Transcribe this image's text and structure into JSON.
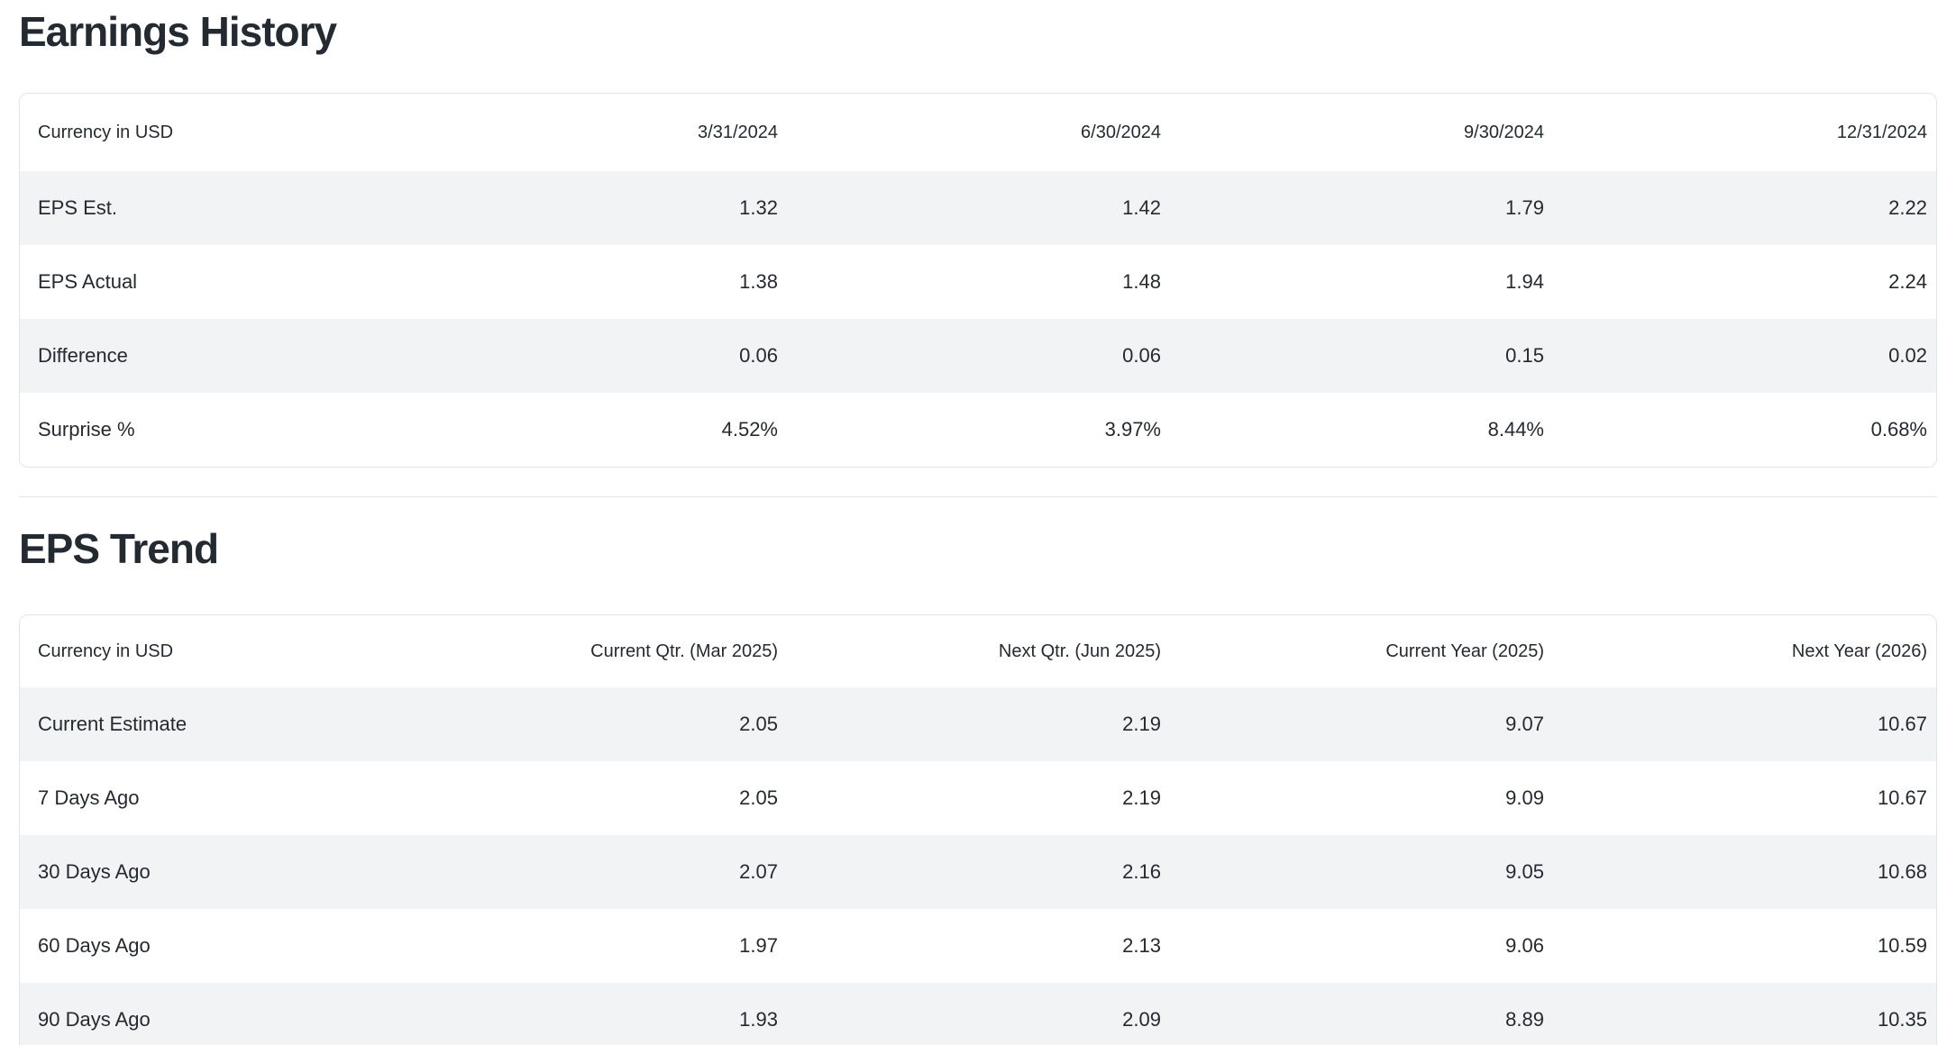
{
  "page": {
    "text_color": "#232a31",
    "stripe_color": "#f2f3f5",
    "border_color": "#e0e3e8",
    "background_color": "#ffffff"
  },
  "sections": [
    {
      "title": "Earnings History",
      "table": {
        "header": [
          "Currency in USD",
          "3/31/2024",
          "6/30/2024",
          "9/30/2024",
          "12/31/2024"
        ],
        "rows": [
          {
            "label": "EPS Est.",
            "values": [
              "1.32",
              "1.42",
              "1.79",
              "2.22"
            ]
          },
          {
            "label": "EPS Actual",
            "values": [
              "1.38",
              "1.48",
              "1.94",
              "2.24"
            ]
          },
          {
            "label": "Difference",
            "values": [
              "0.06",
              "0.06",
              "0.15",
              "0.02"
            ]
          },
          {
            "label": "Surprise %",
            "values": [
              "4.52%",
              "3.97%",
              "8.44%",
              "0.68%"
            ]
          }
        ]
      }
    },
    {
      "title": "EPS Trend",
      "table": {
        "header": [
          "Currency in USD",
          "Current Qtr. (Mar 2025)",
          "Next Qtr. (Jun 2025)",
          "Current Year (2025)",
          "Next Year (2026)"
        ],
        "rows": [
          {
            "label": "Current Estimate",
            "values": [
              "2.05",
              "2.19",
              "9.07",
              "10.67"
            ]
          },
          {
            "label": "7 Days Ago",
            "values": [
              "2.05",
              "2.19",
              "9.09",
              "10.67"
            ]
          },
          {
            "label": "30 Days Ago",
            "values": [
              "2.07",
              "2.16",
              "9.05",
              "10.68"
            ]
          },
          {
            "label": "60 Days Ago",
            "values": [
              "1.97",
              "2.13",
              "9.06",
              "10.59"
            ]
          },
          {
            "label": "90 Days Ago",
            "values": [
              "1.93",
              "2.09",
              "8.89",
              "10.35"
            ]
          }
        ]
      }
    }
  ],
  "chart_data": [
    {
      "type": "table",
      "title": "Earnings History",
      "columns": [
        "Currency in USD",
        "3/31/2024",
        "6/30/2024",
        "9/30/2024",
        "12/31/2024"
      ],
      "rows": [
        [
          "EPS Est.",
          1.32,
          1.42,
          1.79,
          2.22
        ],
        [
          "EPS Actual",
          1.38,
          1.48,
          1.94,
          2.24
        ],
        [
          "Difference",
          0.06,
          0.06,
          0.15,
          0.02
        ],
        [
          "Surprise %",
          "4.52%",
          "3.97%",
          "8.44%",
          "0.68%"
        ]
      ]
    },
    {
      "type": "table",
      "title": "EPS Trend",
      "columns": [
        "Currency in USD",
        "Current Qtr. (Mar 2025)",
        "Next Qtr. (Jun 2025)",
        "Current Year (2025)",
        "Next Year (2026)"
      ],
      "rows": [
        [
          "Current Estimate",
          2.05,
          2.19,
          9.07,
          10.67
        ],
        [
          "7 Days Ago",
          2.05,
          2.19,
          9.09,
          10.67
        ],
        [
          "30 Days Ago",
          2.07,
          2.16,
          9.05,
          10.68
        ],
        [
          "60 Days Ago",
          1.97,
          2.13,
          9.06,
          10.59
        ],
        [
          "90 Days Ago",
          1.93,
          2.09,
          8.89,
          10.35
        ]
      ]
    }
  ]
}
